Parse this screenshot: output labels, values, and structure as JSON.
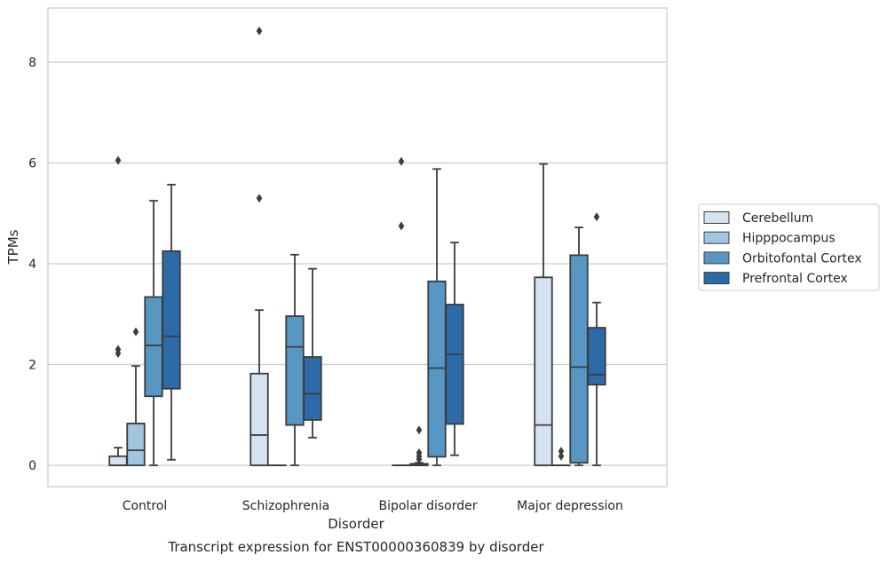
{
  "chart_data": {
    "type": "box",
    "caption": "Transcript expression for ENST00000360839 by disorder",
    "xlabel": "Disorder",
    "ylabel": "TPMs",
    "ylim": [
      -0.4,
      9.1
    ],
    "yticks": [
      0,
      2,
      4,
      6,
      8
    ],
    "grid": "horizontal",
    "legend_position": "right",
    "categories": [
      "Control",
      "Schizophrenia",
      "Bipolar disorder",
      "Major depression"
    ],
    "series": [
      {
        "name": "Cerebellum",
        "color": "#d4e2f2",
        "boxes": [
          {
            "whislo": 0,
            "q1": 0,
            "med": 0,
            "q3": 0.18,
            "whishi": 0.35,
            "fliers": [
              2.22,
              2.3,
              6.05
            ]
          },
          {
            "whislo": 0,
            "q1": 0,
            "med": 0.6,
            "q3": 1.82,
            "whishi": 3.08,
            "fliers": [
              5.3,
              8.62
            ]
          },
          {
            "whislo": 0,
            "q1": 0,
            "med": 0,
            "q3": 0,
            "whishi": 0,
            "fliers": [
              4.75,
              6.03
            ]
          },
          {
            "whislo": 0,
            "q1": 0,
            "med": 0.8,
            "q3": 3.73,
            "whishi": 5.98,
            "fliers": []
          }
        ]
      },
      {
        "name": "Hipppocampus",
        "color": "#9fc5df",
        "boxes": [
          {
            "whislo": 0,
            "q1": 0,
            "med": 0.3,
            "q3": 0.83,
            "whishi": 1.97,
            "fliers": [
              2.65
            ]
          },
          {
            "whislo": 0,
            "q1": 0,
            "med": 0,
            "q3": 0,
            "whishi": 0,
            "fliers": []
          },
          {
            "whislo": 0,
            "q1": 0,
            "med": 0,
            "q3": 0.03,
            "whishi": 0.05,
            "fliers": [
              0.12,
              0.18,
              0.25,
              0.7
            ]
          },
          {
            "whislo": 0,
            "q1": 0,
            "med": 0,
            "q3": 0,
            "whishi": 0,
            "fliers": [
              0.18,
              0.28
            ]
          }
        ]
      },
      {
        "name": "Orbitofontal Cortex",
        "color": "#5896c4",
        "boxes": [
          {
            "whislo": 0,
            "q1": 1.37,
            "med": 2.38,
            "q3": 3.34,
            "whishi": 5.25,
            "fliers": []
          },
          {
            "whislo": 0,
            "q1": 0.8,
            "med": 2.35,
            "q3": 2.96,
            "whishi": 4.18,
            "fliers": []
          },
          {
            "whislo": 0,
            "q1": 0.17,
            "med": 1.93,
            "q3": 3.65,
            "whishi": 5.88,
            "fliers": []
          },
          {
            "whislo": 0,
            "q1": 0.05,
            "med": 1.95,
            "q3": 4.17,
            "whishi": 4.72,
            "fliers": []
          }
        ]
      },
      {
        "name": "Prefrontal Cortex",
        "color": "#2d6ba8",
        "boxes": [
          {
            "whislo": 0.11,
            "q1": 1.52,
            "med": 2.56,
            "q3": 4.25,
            "whishi": 5.57,
            "fliers": []
          },
          {
            "whislo": 0.55,
            "q1": 0.9,
            "med": 1.42,
            "q3": 2.15,
            "whishi": 3.9,
            "fliers": []
          },
          {
            "whislo": 0.2,
            "q1": 0.82,
            "med": 2.2,
            "q3": 3.19,
            "whishi": 4.42,
            "fliers": []
          },
          {
            "whislo": 0,
            "q1": 1.6,
            "med": 1.8,
            "q3": 2.73,
            "whishi": 3.23,
            "fliers": [
              4.93
            ]
          }
        ]
      }
    ]
  }
}
